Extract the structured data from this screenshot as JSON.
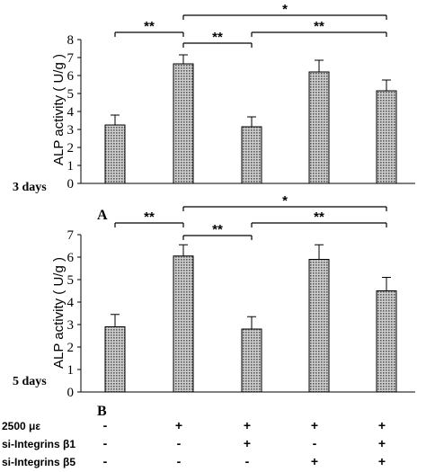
{
  "chart_data": [
    {
      "type": "bar",
      "panel_label": "A",
      "time_label": "3 days",
      "ylabel": "ALP activity ( U/g )",
      "ylim": [
        0,
        8
      ],
      "yticks": [
        "0",
        "1",
        "2",
        "3",
        "4",
        "5",
        "6",
        "7",
        "8"
      ],
      "values": [
        3.25,
        6.65,
        3.15,
        6.2,
        5.15
      ],
      "errors": [
        0.55,
        0.5,
        0.55,
        0.65,
        0.6
      ],
      "significance": [
        {
          "from": 0,
          "to": 1,
          "label": "**",
          "level": 2
        },
        {
          "from": 1,
          "to": 2,
          "label": "**",
          "level": 1
        },
        {
          "from": 2,
          "to": 4,
          "label": "**",
          "level": 2
        },
        {
          "from": 1,
          "to": 4,
          "label": "*",
          "level": 3
        }
      ]
    },
    {
      "type": "bar",
      "panel_label": "B",
      "time_label": "5 days",
      "ylabel": "ALP activity ( U/g )",
      "ylim": [
        0,
        7
      ],
      "yticks": [
        "0",
        "1",
        "2",
        "3",
        "4",
        "5",
        "6",
        "7"
      ],
      "values": [
        2.9,
        6.05,
        2.8,
        5.9,
        4.5
      ],
      "errors": [
        0.55,
        0.5,
        0.55,
        0.65,
        0.6
      ],
      "significance": [
        {
          "from": 0,
          "to": 1,
          "label": "**",
          "level": 2
        },
        {
          "from": 1,
          "to": 2,
          "label": "**",
          "level": 1
        },
        {
          "from": 2,
          "to": 4,
          "label": "**",
          "level": 2
        },
        {
          "from": 1,
          "to": 4,
          "label": "*",
          "level": 3
        }
      ]
    }
  ],
  "conditions": [
    {
      "name": "2500  με",
      "marks": [
        "-",
        "+",
        "+",
        "+",
        "+"
      ]
    },
    {
      "name": "si-Integrins β1",
      "marks": [
        "-",
        "-",
        "+",
        "-",
        "+"
      ]
    },
    {
      "name": "si-Integrins β5",
      "marks": [
        "-",
        "-",
        "-",
        "+",
        "+"
      ]
    }
  ],
  "colors": {
    "bar_fill": "#9a9a9a",
    "bar_stroke": "#000000",
    "ink": "#000000"
  }
}
